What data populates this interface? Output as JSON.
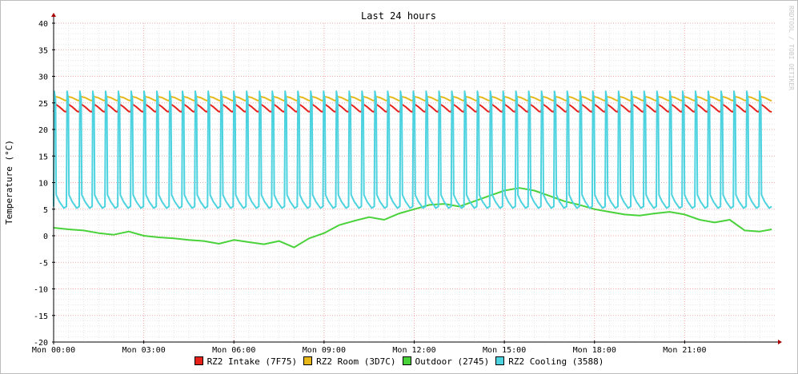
{
  "chart_data": {
    "type": "line",
    "title": "Last 24 hours",
    "ylabel": "Temperature (°C)",
    "watermark": "RRDTOOL / TOBI OETIKER",
    "ylim": [
      -20,
      40
    ],
    "yticks": [
      40,
      35,
      30,
      25,
      20,
      15,
      10,
      5,
      0,
      -5,
      -10,
      -15,
      -20
    ],
    "xlim_hours": [
      0,
      24
    ],
    "xticks": [
      {
        "hour": 0,
        "label": "Mon 00:00"
      },
      {
        "hour": 3,
        "label": "Mon 03:00"
      },
      {
        "hour": 6,
        "label": "Mon 06:00"
      },
      {
        "hour": 9,
        "label": "Mon 09:00"
      },
      {
        "hour": 12,
        "label": "Mon 12:00"
      },
      {
        "hour": 15,
        "label": "Mon 15:00"
      },
      {
        "hour": 18,
        "label": "Mon 18:00"
      },
      {
        "hour": 21,
        "label": "Mon 21:00"
      }
    ],
    "grid": true,
    "series": [
      {
        "name": "RZ2 Intake (7F75)",
        "color": "#e8201a",
        "pattern": "sawtooth",
        "cycles": 56,
        "low": 23.3,
        "high": 24.8,
        "x_hours": [
          0,
          23.9
        ]
      },
      {
        "name": "RZ2 Room (3D7C)",
        "color": "#e8b81a",
        "pattern": "sawtooth",
        "cycles": 56,
        "low": 25.4,
        "high": 26.2,
        "x_hours": [
          0,
          23.9
        ]
      },
      {
        "name": "Outdoor (2745)",
        "color": "#49d23a",
        "x_hours": [
          0,
          0.5,
          1,
          1.5,
          2,
          2.5,
          3,
          3.5,
          4,
          4.5,
          5,
          5.5,
          6,
          6.5,
          7,
          7.5,
          8,
          8.5,
          9,
          9.5,
          10,
          10.5,
          11,
          11.5,
          12,
          12.5,
          13,
          13.5,
          14,
          14.5,
          15,
          15.5,
          16,
          16.5,
          17,
          17.5,
          18,
          18.5,
          19,
          19.5,
          20,
          20.5,
          21,
          21.5,
          22,
          22.5,
          23,
          23.5,
          23.9
        ],
        "values": [
          1.5,
          1.2,
          1.0,
          0.5,
          0.2,
          0.8,
          0.0,
          -0.3,
          -0.5,
          -0.8,
          -1.0,
          -1.5,
          -0.8,
          -1.2,
          -1.6,
          -1.0,
          -2.2,
          -0.5,
          0.5,
          2.0,
          2.8,
          3.5,
          3.0,
          4.2,
          5.0,
          5.8,
          6.0,
          5.5,
          6.5,
          7.5,
          8.5,
          9.0,
          8.5,
          7.5,
          6.5,
          5.8,
          5.0,
          4.5,
          4.0,
          3.8,
          4.2,
          4.5,
          4.0,
          3.0,
          2.5,
          3.0,
          1.0,
          0.8,
          1.2
        ]
      },
      {
        "name": "RZ2 Cooling (3588)",
        "color": "#4dd3e0",
        "pattern": "pulse",
        "cycles": 56,
        "low": 5.2,
        "high": 27.2,
        "x_hours": [
          0,
          23.9
        ]
      }
    ],
    "legend_position": "bottom"
  }
}
